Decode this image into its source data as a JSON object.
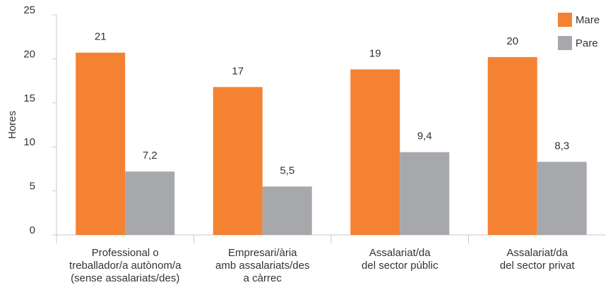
{
  "chart_data": {
    "type": "bar",
    "y_label": "Hores",
    "categories": [
      [
        "Professional o",
        "treballador/a autònom/a",
        "(sense assalariats/des)"
      ],
      [
        "Empresari/ària",
        "amb assalariats/des",
        "a càrrec"
      ],
      [
        "Assalariat/da",
        "del sector públic"
      ],
      [
        "Assalariat/da",
        "del sector privat"
      ]
    ],
    "series": [
      {
        "name": "Mare",
        "color": "#f58232",
        "values": [
          20.7,
          16.8,
          18.8,
          20.2
        ],
        "value_labels": [
          "21",
          "17",
          "19",
          "20"
        ]
      },
      {
        "name": "Pare",
        "color": "#a7a8ac",
        "values": [
          7.2,
          5.5,
          9.4,
          8.3
        ],
        "value_labels": [
          "7,2",
          "5,5",
          "9,4",
          "8,3"
        ]
      }
    ],
    "ylim": [
      0,
      25
    ],
    "yticks": [
      0,
      5,
      10,
      15,
      20,
      25
    ],
    "legend": "top-right"
  }
}
